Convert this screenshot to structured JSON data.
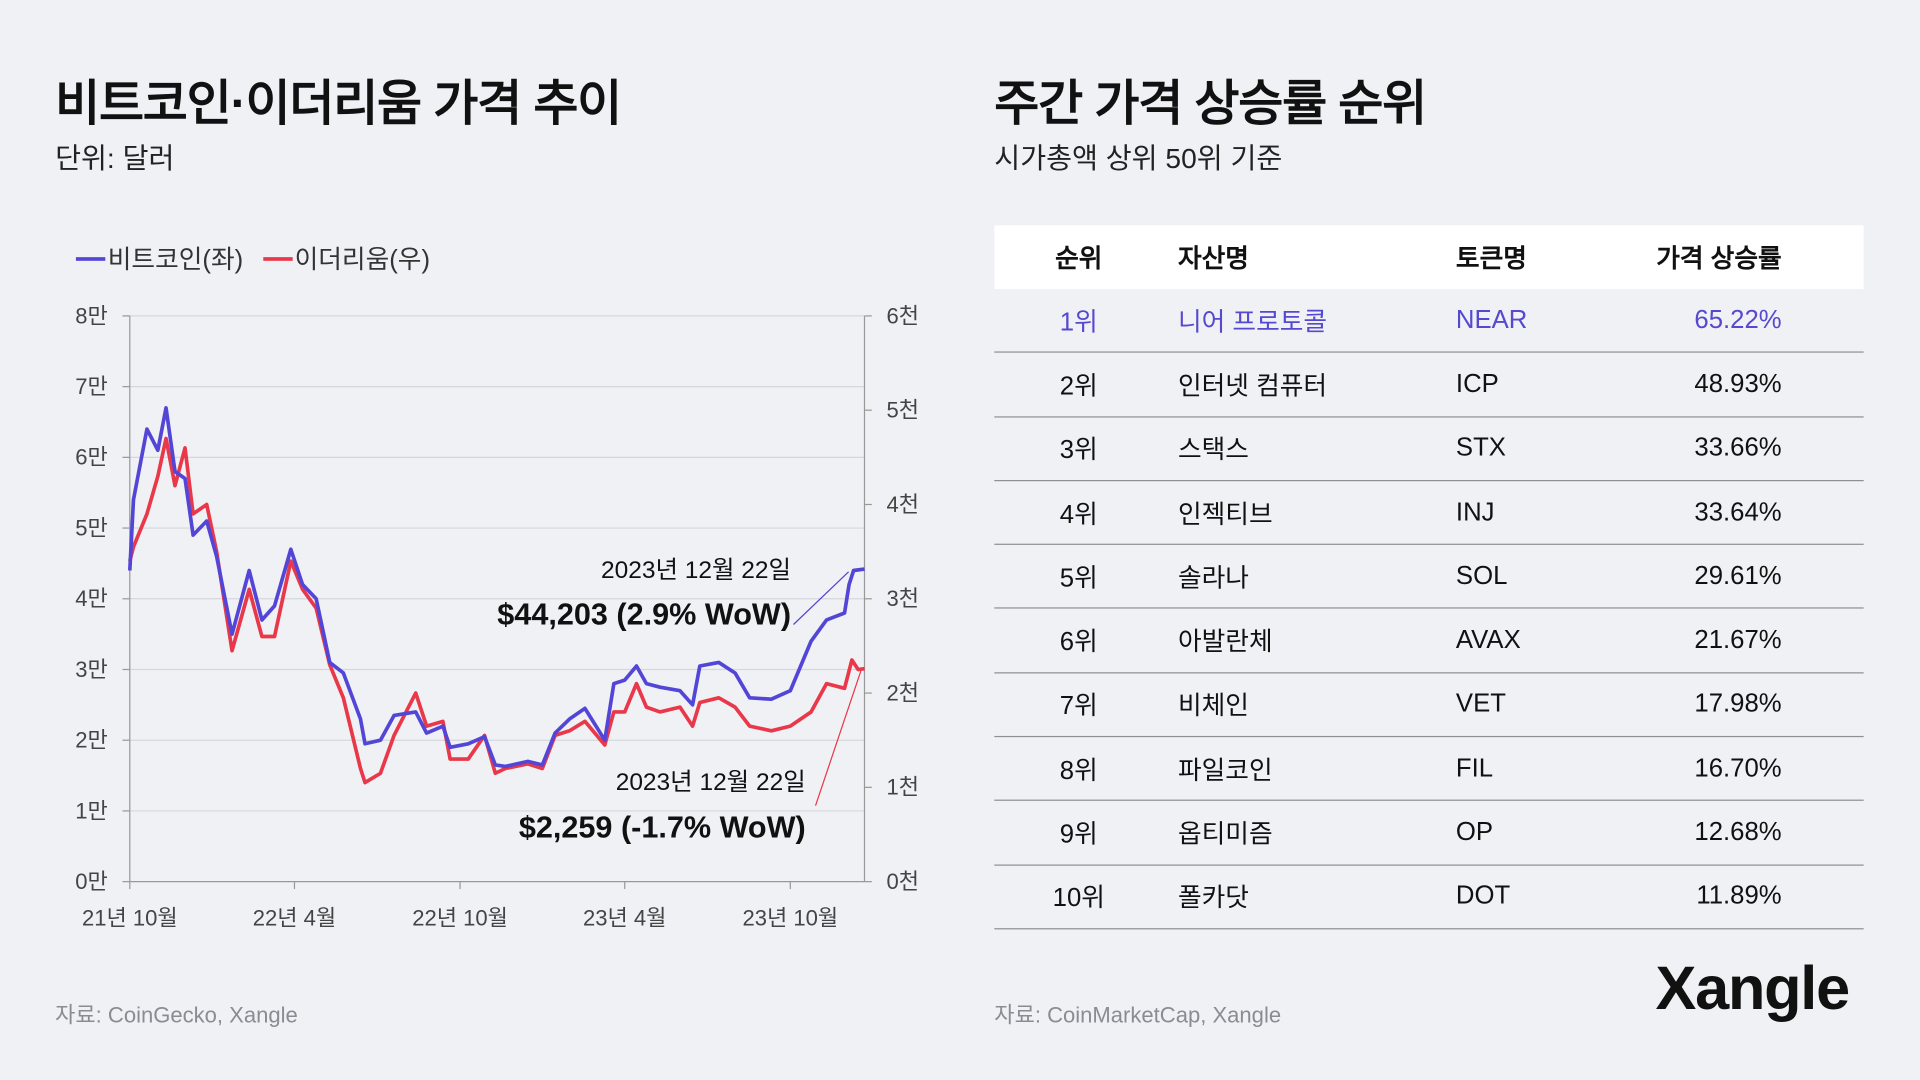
{
  "left": {
    "title": "비트코인·이더리움 가격 추이",
    "subtitle": "단위: 달러",
    "source": "자료: CoinGecko, Xangle"
  },
  "right": {
    "title": "주간 가격 상승률 순위",
    "subtitle": "시가총액 상위 50위 기준",
    "source": "자료: CoinMarketCap, Xangle",
    "headers": [
      "순위",
      "자산명",
      "토큰명",
      "가격 상승률"
    ],
    "rows": [
      [
        "1위",
        "니어 프로토콜",
        "NEAR",
        "65.22%"
      ],
      [
        "2위",
        "인터넷 컴퓨터",
        "ICP",
        "48.93%"
      ],
      [
        "3위",
        "스택스",
        "STX",
        "33.66%"
      ],
      [
        "4위",
        "인젝티브",
        "INJ",
        "33.64%"
      ],
      [
        "5위",
        "솔라나",
        "SOL",
        "29.61%"
      ],
      [
        "6위",
        "아발란체",
        "AVAX",
        "21.67%"
      ],
      [
        "7위",
        "비체인",
        "VET",
        "17.98%"
      ],
      [
        "8위",
        "파일코인",
        "FIL",
        "16.70%"
      ],
      [
        "9위",
        "옵티미즘",
        "OP",
        "12.68%"
      ],
      [
        "10위",
        "폴카닷",
        "DOT",
        "11.89%"
      ]
    ],
    "highlight_color": "#5549cf"
  },
  "logo": "Xangle",
  "chart_data": {
    "type": "line",
    "legend": [
      "비트코인(좌)",
      "이더리움(우)"
    ],
    "legend_placement": "top-left",
    "grid": true,
    "x_ticks": [
      "21년 10월",
      "22년 4월",
      "22년 10월",
      "23년 4월",
      "23년 10월"
    ],
    "x_tick_dates": [
      "2021-10-01",
      "2022-04-01",
      "2022-10-01",
      "2023-04-01",
      "2023-10-01"
    ],
    "xlim": [
      "2021-10-01",
      "2023-12-22"
    ],
    "y_left": {
      "ylim": [
        0,
        80000
      ],
      "ticks": [
        "0만",
        "1만",
        "2만",
        "3만",
        "4만",
        "5만",
        "6만",
        "7만",
        "8만"
      ]
    },
    "y_right": {
      "ylim": [
        0,
        6000
      ],
      "ticks": [
        "0천",
        "1천",
        "2천",
        "3천",
        "4천",
        "5천",
        "6천"
      ]
    },
    "series": [
      {
        "name": "비트코인(좌)",
        "axis": "left",
        "color": "#5346d6",
        "x": [
          "2021-10-01",
          "2021-10-05",
          "2021-10-20",
          "2021-11-01",
          "2021-11-10",
          "2021-11-20",
          "2021-12-01",
          "2021-12-10",
          "2021-12-25",
          "2022-01-05",
          "2022-01-22",
          "2022-02-10",
          "2022-02-24",
          "2022-03-10",
          "2022-03-28",
          "2022-04-10",
          "2022-04-25",
          "2022-05-10",
          "2022-05-25",
          "2022-06-13",
          "2022-06-18",
          "2022-07-05",
          "2022-07-20",
          "2022-08-13",
          "2022-08-25",
          "2022-09-12",
          "2022-09-20",
          "2022-10-10",
          "2022-10-28",
          "2022-11-09",
          "2022-11-20",
          "2022-12-15",
          "2022-12-31",
          "2023-01-14",
          "2023-01-30",
          "2023-02-16",
          "2023-03-10",
          "2023-03-20",
          "2023-04-01",
          "2023-04-14",
          "2023-04-25",
          "2023-05-10",
          "2023-06-01",
          "2023-06-15",
          "2023-06-23",
          "2023-07-14",
          "2023-08-01",
          "2023-08-17",
          "2023-09-10",
          "2023-10-01",
          "2023-10-24",
          "2023-11-10",
          "2023-11-30",
          "2023-12-05",
          "2023-12-10",
          "2023-12-22"
        ],
        "y": [
          44000,
          54000,
          64000,
          61000,
          67000,
          58000,
          57000,
          49000,
          51000,
          46000,
          35000,
          44000,
          37000,
          39000,
          47000,
          42000,
          40000,
          31000,
          29500,
          23000,
          19500,
          20000,
          23500,
          24000,
          21000,
          22000,
          19000,
          19500,
          20500,
          16500,
          16300,
          17000,
          16500,
          21000,
          23000,
          24500,
          20000,
          28000,
          28500,
          30500,
          28000,
          27500,
          27000,
          25000,
          30500,
          31000,
          29500,
          26000,
          25800,
          27000,
          34000,
          37000,
          38000,
          42000,
          44000,
          44203
        ]
      },
      {
        "name": "이더리움(우)",
        "axis": "right",
        "color": "#e8384a",
        "x": [
          "2021-10-01",
          "2021-10-05",
          "2021-10-20",
          "2021-11-01",
          "2021-11-10",
          "2021-11-20",
          "2021-12-01",
          "2021-12-10",
          "2021-12-25",
          "2022-01-05",
          "2022-01-22",
          "2022-02-10",
          "2022-02-24",
          "2022-03-10",
          "2022-03-28",
          "2022-04-10",
          "2022-04-25",
          "2022-05-10",
          "2022-05-25",
          "2022-06-13",
          "2022-06-18",
          "2022-07-05",
          "2022-07-20",
          "2022-08-13",
          "2022-08-25",
          "2022-09-12",
          "2022-09-20",
          "2022-10-10",
          "2022-10-28",
          "2022-11-09",
          "2022-11-20",
          "2022-12-15",
          "2022-12-31",
          "2023-01-14",
          "2023-01-30",
          "2023-02-16",
          "2023-03-10",
          "2023-03-20",
          "2023-04-01",
          "2023-04-14",
          "2023-04-25",
          "2023-05-10",
          "2023-06-01",
          "2023-06-15",
          "2023-06-23",
          "2023-07-14",
          "2023-08-01",
          "2023-08-17",
          "2023-09-10",
          "2023-10-01",
          "2023-10-24",
          "2023-11-10",
          "2023-11-30",
          "2023-12-08",
          "2023-12-15",
          "2023-12-22"
        ],
        "y": [
          3400,
          3550,
          3900,
          4300,
          4700,
          4200,
          4600,
          3900,
          4000,
          3500,
          2450,
          3100,
          2600,
          2600,
          3400,
          3100,
          2900,
          2300,
          1950,
          1200,
          1050,
          1150,
          1550,
          2000,
          1650,
          1700,
          1300,
          1300,
          1550,
          1150,
          1200,
          1250,
          1200,
          1550,
          1600,
          1700,
          1450,
          1800,
          1800,
          2100,
          1850,
          1800,
          1850,
          1650,
          1900,
          1950,
          1850,
          1650,
          1600,
          1650,
          1800,
          2100,
          2050,
          2350,
          2250,
          2259
        ]
      }
    ],
    "annotations": [
      {
        "series": "비트코인(좌)",
        "date_label": "2023년 12월 22일",
        "value_label": "$44,203 (2.9% WoW)"
      },
      {
        "series": "이더리움(우)",
        "date_label": "2023년 12월 22일",
        "value_label": "$2,259 (-1.7% WoW)"
      }
    ]
  }
}
